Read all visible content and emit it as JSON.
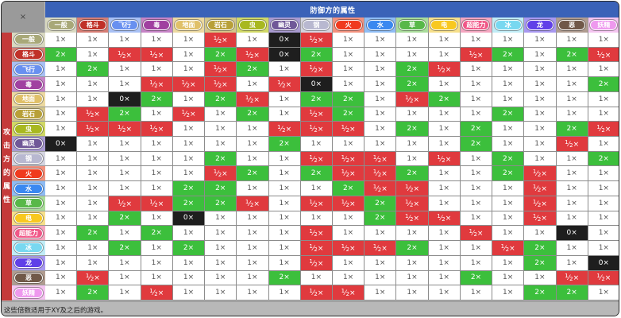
{
  "corner_symbol": "×",
  "title": "防御方的属性",
  "side_label": [
    "攻",
    "击",
    "方",
    "的",
    "属",
    "性"
  ],
  "footer_note": "这些倍数适用于XY及之后的游戏。",
  "types": [
    {
      "id": "normal",
      "label": "一般",
      "pill": "#a8a878",
      "bg": "#d8d8c0"
    },
    {
      "id": "fighting",
      "label": "格斗",
      "pill": "#c03028",
      "bg": "#d67d74"
    },
    {
      "id": "flying",
      "label": "飞行",
      "pill": "#6890f0",
      "bg": "#a8c0f4"
    },
    {
      "id": "poison",
      "label": "毒",
      "pill": "#a040a0",
      "bg": "#c683c6"
    },
    {
      "id": "ground",
      "label": "地面",
      "pill": "#e0c068",
      "bg": "#ecd9a0"
    },
    {
      "id": "rock",
      "label": "岩石",
      "pill": "#b8a038",
      "bg": "#d3c68a"
    },
    {
      "id": "bug",
      "label": "虫",
      "pill": "#a8b820",
      "bg": "#d0d866"
    },
    {
      "id": "ghost",
      "label": "幽灵",
      "pill": "#705898",
      "bg": "#a89ad0"
    },
    {
      "id": "steel",
      "label": "钢",
      "pill": "#b8b8d0",
      "bg": "#d4d4e0"
    },
    {
      "id": "fire",
      "label": "火",
      "pill": "#f03a1e",
      "bg": "#f2917e"
    },
    {
      "id": "water",
      "label": "水",
      "pill": "#3a88f0",
      "bg": "#8ebcf4"
    },
    {
      "id": "grass",
      "label": "草",
      "pill": "#58b848",
      "bg": "#a9dc9a"
    },
    {
      "id": "electric",
      "label": "电",
      "pill": "#f8c820",
      "bg": "#f6df8a"
    },
    {
      "id": "psychic",
      "label": "超能力",
      "pill": "#f05888",
      "bg": "#f4a6c0"
    },
    {
      "id": "ice",
      "label": "冰",
      "pill": "#78d8f0",
      "bg": "#c0ecf6"
    },
    {
      "id": "dragon",
      "label": "龙",
      "pill": "#6040e8",
      "bg": "#a898f0"
    },
    {
      "id": "dark",
      "label": "恶",
      "pill": "#705848",
      "bg": "#b09c90"
    },
    {
      "id": "fairy",
      "label": "妖精",
      "pill": "#ee99ee",
      "bg": "#f4c4f0"
    }
  ],
  "colors": {
    "super_effective": "#3cbf3c",
    "not_very_effective": "#e03a3e",
    "no_effect": "#1e1e1e",
    "normal": "#ffffff",
    "title_bar": "#3a62b8",
    "side_label": "#c43a3a"
  },
  "matrix": [
    [
      "1",
      "1",
      "1",
      "1",
      "1",
      "h",
      "1",
      "0",
      "h",
      "1",
      "1",
      "1",
      "1",
      "1",
      "1",
      "1",
      "1",
      "1"
    ],
    [
      "2",
      "1",
      "h",
      "h",
      "1",
      "2",
      "h",
      "0",
      "2",
      "1",
      "1",
      "1",
      "1",
      "h",
      "2",
      "1",
      "2",
      "h"
    ],
    [
      "1",
      "2",
      "1",
      "1",
      "1",
      "h",
      "2",
      "1",
      "h",
      "1",
      "1",
      "2",
      "h",
      "1",
      "1",
      "1",
      "1",
      "1"
    ],
    [
      "1",
      "1",
      "1",
      "h",
      "h",
      "h",
      "1",
      "h",
      "0",
      "1",
      "1",
      "2",
      "1",
      "1",
      "1",
      "1",
      "1",
      "2"
    ],
    [
      "1",
      "1",
      "0",
      "2",
      "1",
      "2",
      "h",
      "1",
      "2",
      "2",
      "1",
      "h",
      "2",
      "1",
      "1",
      "1",
      "1",
      "1"
    ],
    [
      "1",
      "h",
      "2",
      "1",
      "h",
      "1",
      "2",
      "1",
      "h",
      "2",
      "1",
      "1",
      "1",
      "1",
      "2",
      "1",
      "1",
      "1"
    ],
    [
      "1",
      "h",
      "h",
      "h",
      "1",
      "1",
      "1",
      "h",
      "h",
      "h",
      "1",
      "2",
      "1",
      "2",
      "1",
      "1",
      "2",
      "h"
    ],
    [
      "0",
      "1",
      "1",
      "1",
      "1",
      "1",
      "1",
      "2",
      "1",
      "1",
      "1",
      "1",
      "1",
      "2",
      "1",
      "1",
      "h",
      "1"
    ],
    [
      "1",
      "1",
      "1",
      "1",
      "1",
      "2",
      "1",
      "1",
      "h",
      "h",
      "h",
      "1",
      "h",
      "1",
      "2",
      "1",
      "1",
      "2"
    ],
    [
      "1",
      "1",
      "1",
      "1",
      "1",
      "h",
      "2",
      "1",
      "2",
      "h",
      "h",
      "2",
      "1",
      "1",
      "2",
      "h",
      "1",
      "1"
    ],
    [
      "1",
      "1",
      "1",
      "1",
      "2",
      "2",
      "1",
      "1",
      "1",
      "2",
      "h",
      "h",
      "1",
      "1",
      "1",
      "h",
      "1",
      "1"
    ],
    [
      "1",
      "1",
      "h",
      "h",
      "2",
      "2",
      "h",
      "1",
      "h",
      "h",
      "2",
      "h",
      "1",
      "1",
      "1",
      "h",
      "1",
      "1"
    ],
    [
      "1",
      "1",
      "2",
      "1",
      "0",
      "1",
      "1",
      "1",
      "1",
      "1",
      "2",
      "h",
      "h",
      "1",
      "1",
      "h",
      "1",
      "1"
    ],
    [
      "1",
      "2",
      "1",
      "2",
      "1",
      "1",
      "1",
      "1",
      "h",
      "1",
      "1",
      "1",
      "1",
      "h",
      "1",
      "1",
      "0",
      "1"
    ],
    [
      "1",
      "1",
      "2",
      "1",
      "2",
      "1",
      "1",
      "1",
      "h",
      "h",
      "h",
      "2",
      "1",
      "1",
      "h",
      "2",
      "1",
      "1"
    ],
    [
      "1",
      "1",
      "1",
      "1",
      "1",
      "1",
      "1",
      "1",
      "h",
      "1",
      "1",
      "1",
      "1",
      "1",
      "1",
      "2",
      "1",
      "0"
    ],
    [
      "1",
      "h",
      "1",
      "1",
      "1",
      "1",
      "1",
      "2",
      "1",
      "1",
      "1",
      "1",
      "1",
      "2",
      "1",
      "1",
      "h",
      "h"
    ],
    [
      "1",
      "2",
      "1",
      "h",
      "1",
      "1",
      "1",
      "1",
      "h",
      "h",
      "1",
      "1",
      "1",
      "1",
      "1",
      "2",
      "2",
      "1"
    ]
  ],
  "value_labels": {
    "1": "1×",
    "2": "2×",
    "0": "0×",
    "h": "½×"
  }
}
